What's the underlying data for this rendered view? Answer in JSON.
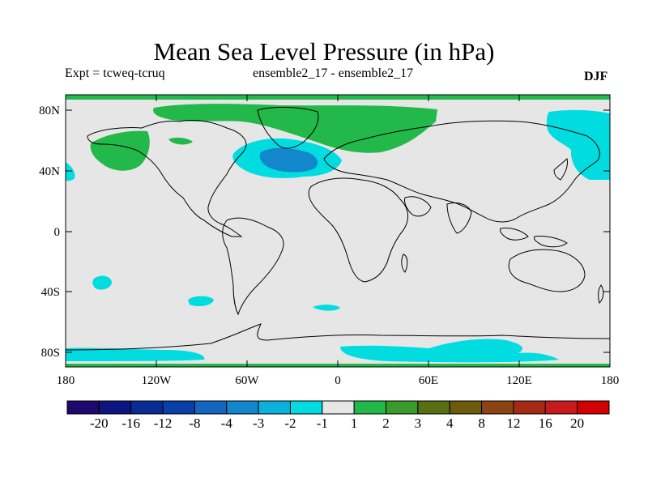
{
  "title": "Mean Sea Level Pressure (in hPa)",
  "expt_label": "Expt = tcweq-tcruq",
  "ensemble_label": "ensemble2_17 - ensemble2_17",
  "season": "DJF",
  "axes": {
    "lat_ticks": [
      "80N",
      "40N",
      "0",
      "40S",
      "80S"
    ],
    "lon_ticks": [
      "180",
      "120W",
      "60W",
      "0",
      "60E",
      "120E",
      "180"
    ]
  },
  "colorbar": {
    "labels": [
      "-20",
      "-16",
      "-12",
      "-8",
      "-4",
      "-3",
      "-2",
      "-1",
      "1",
      "2",
      "3",
      "4",
      "8",
      "12",
      "16",
      "20"
    ],
    "colors": [
      "#1e0a6e",
      "#0d1580",
      "#072c94",
      "#0a3fa8",
      "#1466bf",
      "#1287cc",
      "#0bb0dc",
      "#00dce0",
      "#e6e6e6",
      "#22b84a",
      "#3b9a2c",
      "#586f14",
      "#6e5a0c",
      "#8c4414",
      "#a32a14",
      "#c71a1a",
      "#d40000"
    ]
  },
  "colors": {
    "neutral": "#e6e6e6",
    "positive_light": "#22b84a",
    "negative_light": "#00dce0",
    "negative_mid": "#1287cc"
  }
}
